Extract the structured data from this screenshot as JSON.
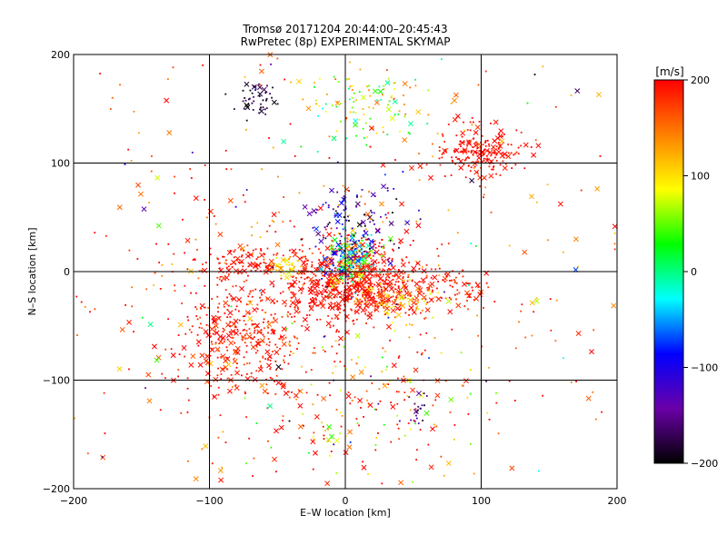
{
  "chart_data": {
    "type": "scatter",
    "title": "Tromsø 20171204 20:44:00–20:45:43",
    "subtitle": "RwPretec (8p) EXPERIMENTAL SKYMAP",
    "xlabel": "E–W location [km]",
    "ylabel": "N–S location [km]",
    "xlim": [
      -200,
      200
    ],
    "ylim": [
      -200,
      200
    ],
    "xticks": [
      "−200",
      "−100",
      "0",
      "100",
      "200"
    ],
    "yticks": [
      "−200",
      "−100",
      "0",
      "100",
      "200"
    ],
    "grid": true,
    "colorbar": {
      "label": "[m/s]",
      "range": [
        -200,
        200
      ],
      "ticks": [
        "200",
        "100",
        "0",
        "−100",
        "−200"
      ],
      "colors": [
        "#000000",
        "#6a00a8",
        "#0000ff",
        "#00ffff",
        "#00ff00",
        "#ffff00",
        "#ff8000",
        "#ff0000"
      ]
    },
    "markers": [
      "dot",
      "cross"
    ],
    "series": [
      {
        "cx": 5,
        "cy": -10,
        "sx": 25,
        "sy": 18,
        "n": 700,
        "v": 195,
        "dv": 15
      },
      {
        "cx": 5,
        "cy": 12,
        "sx": 10,
        "sy": 12,
        "n": 220,
        "v": 20,
        "dv": 120
      },
      {
        "cx": 5,
        "cy": 40,
        "sx": 18,
        "sy": 20,
        "n": 120,
        "v": -140,
        "dv": 70
      },
      {
        "cx": -75,
        "cy": -60,
        "sx": 25,
        "sy": 30,
        "n": 380,
        "v": 190,
        "dv": 25
      },
      {
        "cx": -80,
        "cy": 10,
        "sx": 15,
        "sy": 8,
        "n": 90,
        "v": 190,
        "dv": 20
      },
      {
        "cx": -45,
        "cy": 5,
        "sx": 8,
        "sy": 5,
        "n": 40,
        "v": 110,
        "dv": 40
      },
      {
        "cx": 100,
        "cy": 110,
        "sx": 15,
        "sy": 12,
        "n": 200,
        "v": 195,
        "dv": 15
      },
      {
        "cx": -65,
        "cy": 160,
        "sx": 8,
        "sy": 8,
        "n": 50,
        "v": -185,
        "dv": 20
      },
      {
        "cx": 15,
        "cy": 150,
        "sx": 25,
        "sy": 20,
        "n": 110,
        "v": 60,
        "dv": 90
      },
      {
        "cx": 40,
        "cy": -25,
        "sx": 15,
        "sy": 10,
        "n": 100,
        "v": 130,
        "dv": 60
      },
      {
        "cx": 80,
        "cy": -15,
        "sx": 15,
        "sy": 8,
        "n": 60,
        "v": 190,
        "dv": 20
      },
      {
        "cx": 20,
        "cy": -120,
        "sx": 40,
        "sy": 35,
        "n": 160,
        "v": 150,
        "dv": 120
      },
      {
        "cx": 55,
        "cy": -130,
        "sx": 5,
        "sy": 8,
        "n": 20,
        "v": -160,
        "dv": 40
      },
      {
        "cx": 0,
        "cy": 0,
        "sx": 110,
        "sy": 110,
        "n": 420,
        "v": 170,
        "dv": 60
      },
      {
        "cx": 0,
        "cy": 0,
        "sx": 200,
        "sy": 200,
        "n": 140,
        "v": 0,
        "dv": 200
      }
    ]
  }
}
